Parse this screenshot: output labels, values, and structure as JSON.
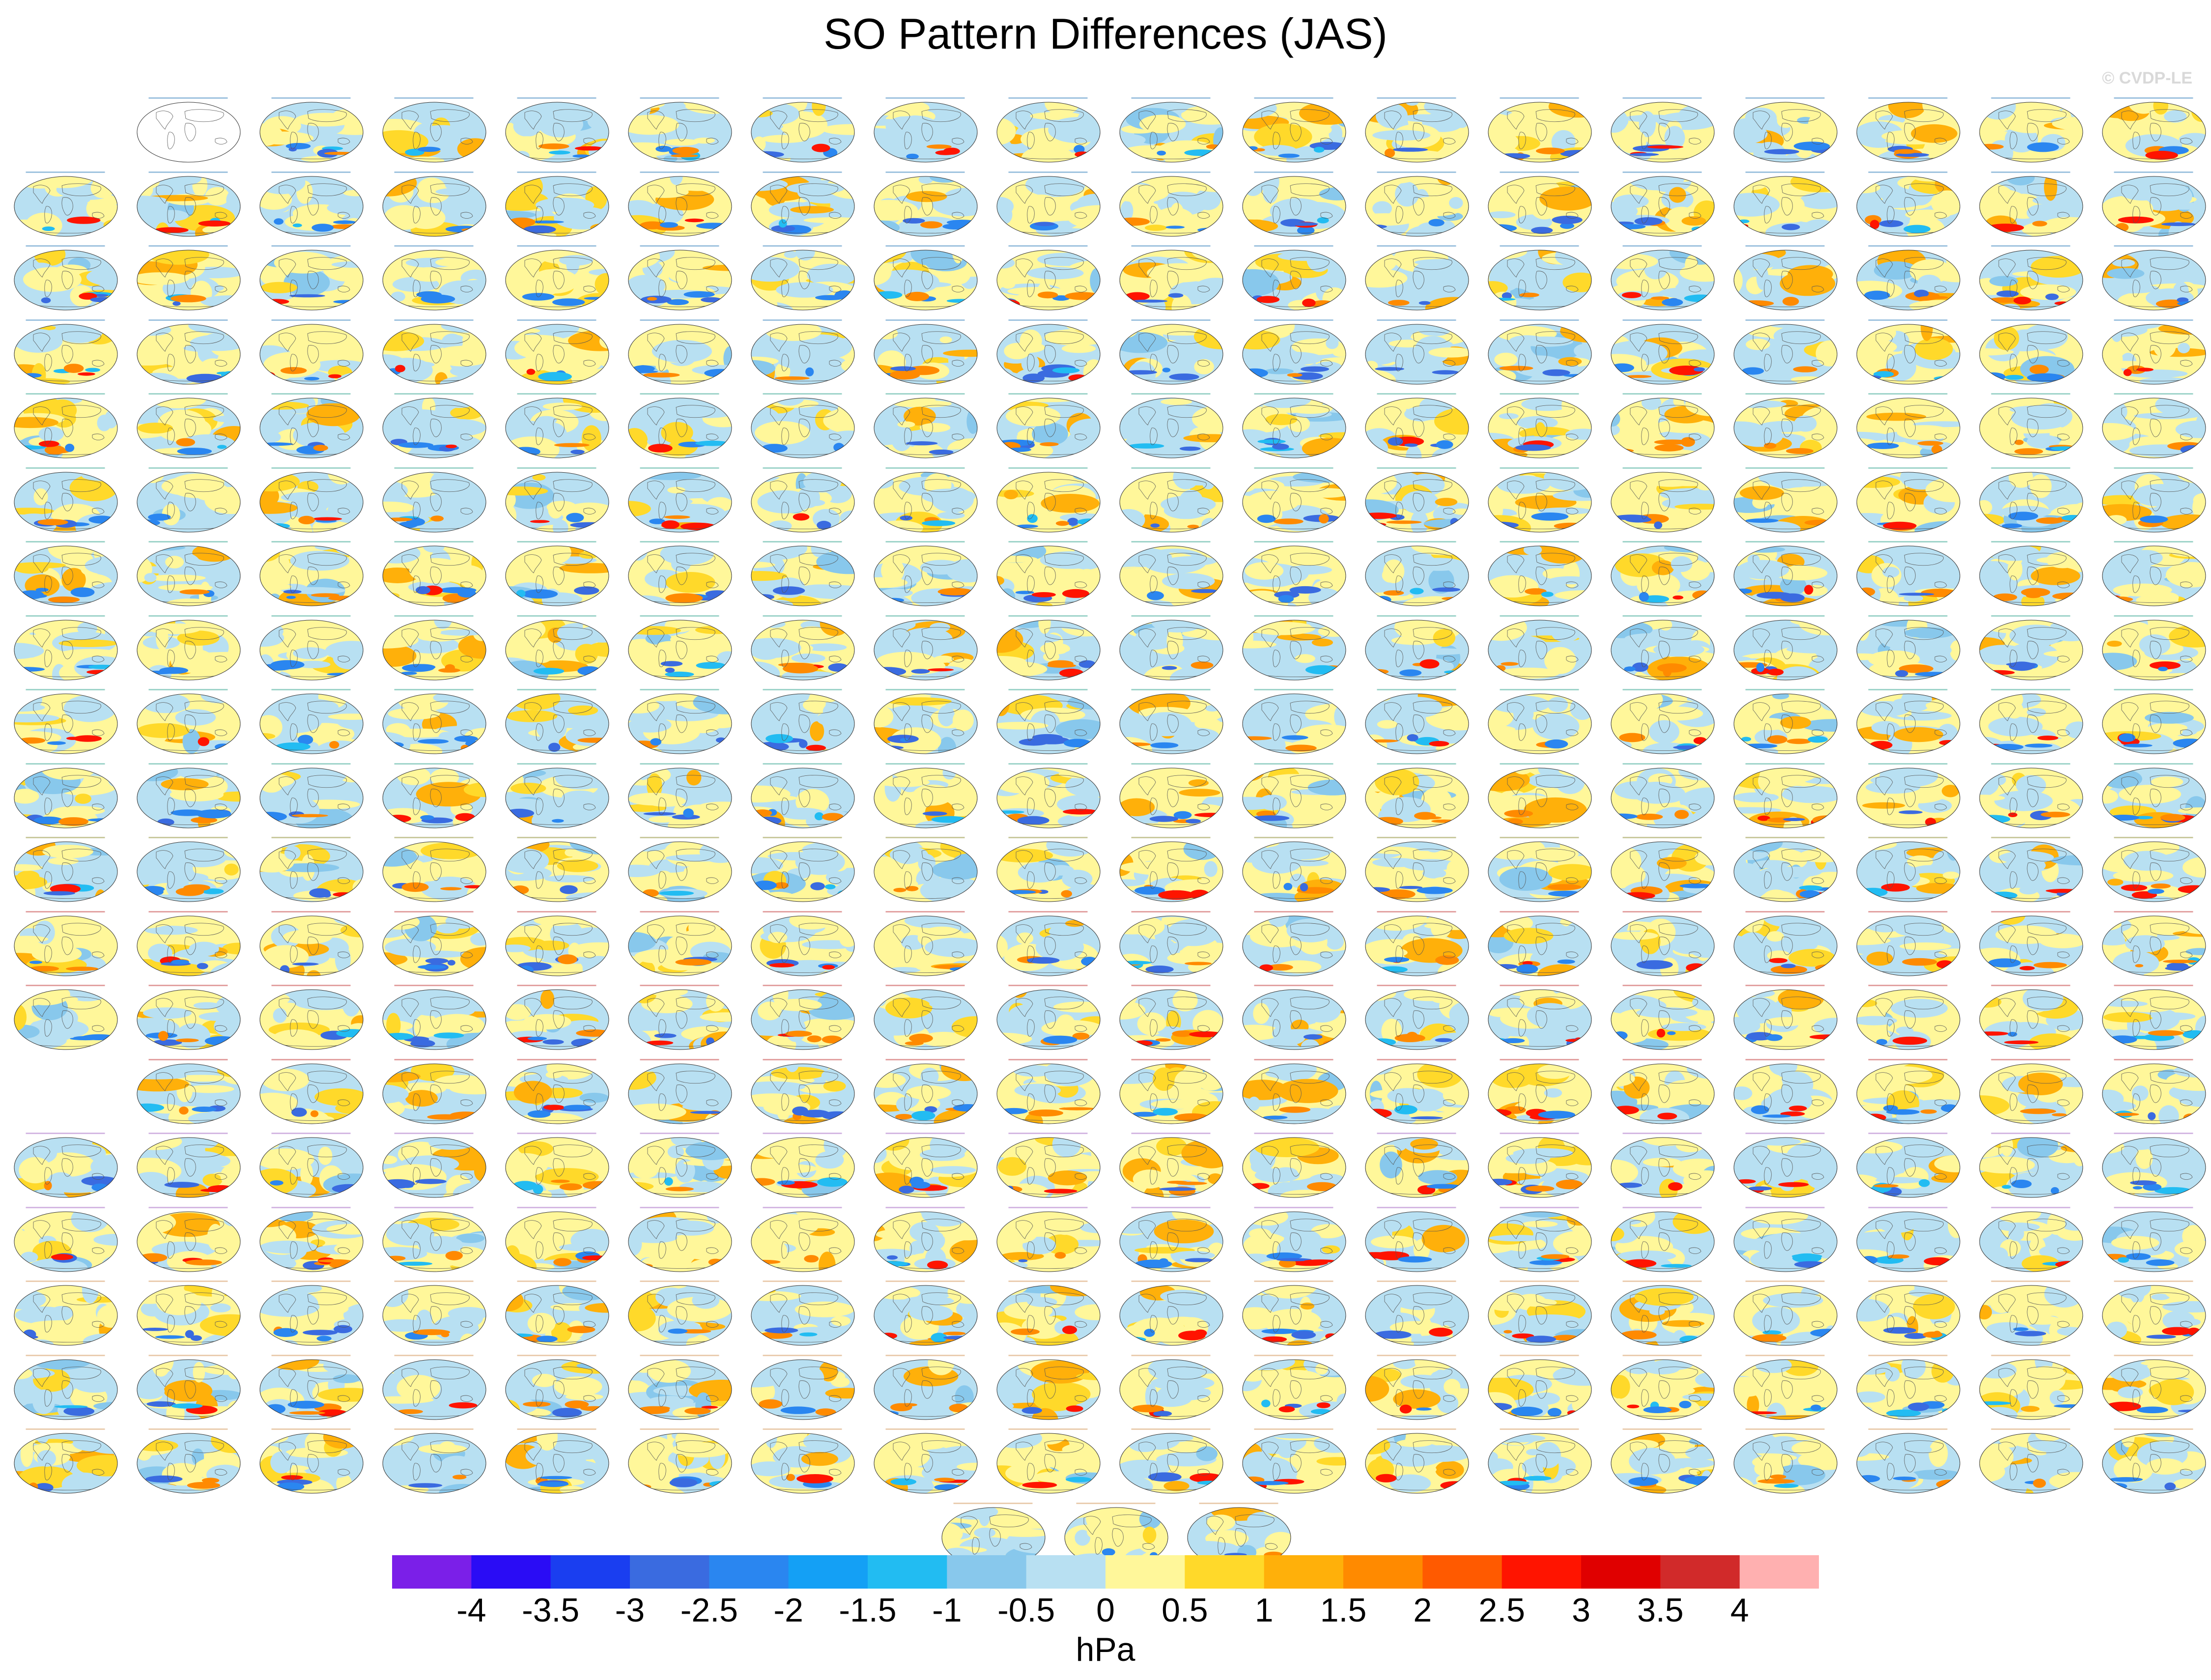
{
  "title": "SO Pattern Differences (JAS)",
  "credit": "© CVDP-LE",
  "chart_data": {
    "type": "heatmap",
    "title": "SO Pattern Differences (JAS)",
    "description_grid": "small-multiple global map panels",
    "panel_rows": 19,
    "panel_cols": 18,
    "colorbar": {
      "label": "hPa",
      "ticks": [
        "-4",
        "-3.5",
        "-3",
        "-2.5",
        "-2",
        "-1.5",
        "-1",
        "-0.5",
        "0",
        "0.5",
        "1",
        "1.5",
        "2",
        "2.5",
        "3",
        "3.5",
        "4"
      ],
      "range": [
        -4,
        4
      ],
      "colors": [
        "#7b1fe8",
        "#2a0cf5",
        "#1a3ef0",
        "#3a6be0",
        "#2a86f0",
        "#14a0f5",
        "#22bcf2",
        "#88c8ec",
        "#b8e0f2",
        "#fff79a",
        "#ffd92a",
        "#ffb00a",
        "#ff8a00",
        "#ff5a00",
        "#ff1400",
        "#e00000",
        "#d12a2a",
        "#ffb0b0"
      ]
    },
    "grid_on": false,
    "legend_placement": "bottom"
  }
}
